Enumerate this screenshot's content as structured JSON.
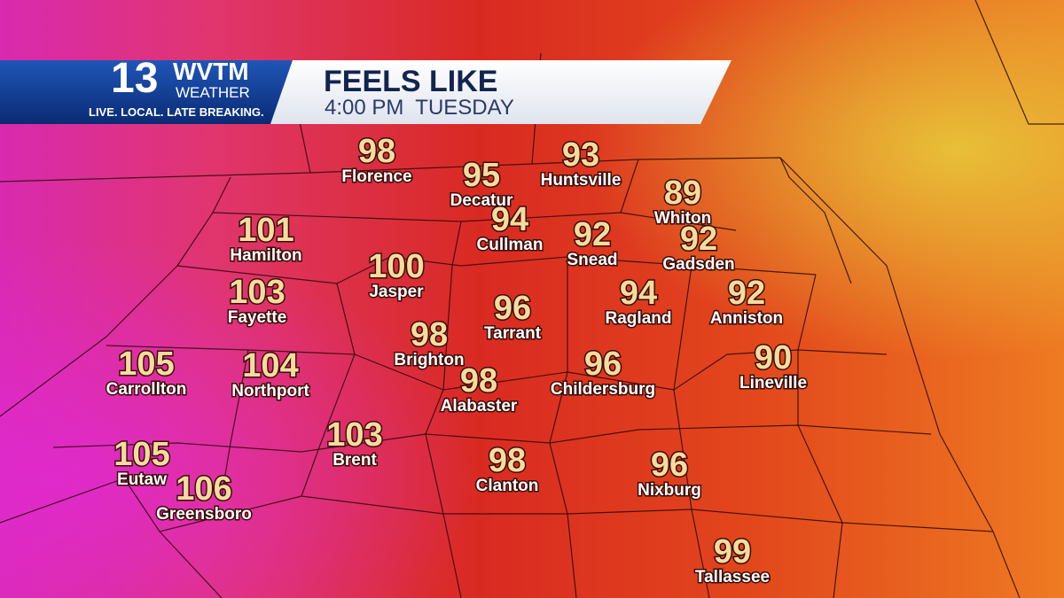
{
  "header": {
    "logo": {
      "number": "13",
      "call_sign": "WVTM",
      "brand": "WEATHER",
      "slogan": "LIVE. LOCAL. LATE BREAKING."
    },
    "title": "FEELS LIKE",
    "subtitle": "4:00 PM  TUESDAY"
  },
  "cities": [
    {
      "name": "Florence",
      "value": 98
    },
    {
      "name": "Decatur",
      "value": 95
    },
    {
      "name": "Huntsville",
      "value": 93
    },
    {
      "name": "Whiton",
      "value": 89
    },
    {
      "name": "Hamilton",
      "value": 101
    },
    {
      "name": "Cullman",
      "value": 94
    },
    {
      "name": "Snead",
      "value": 92
    },
    {
      "name": "Gadsden",
      "value": 92
    },
    {
      "name": "Jasper",
      "value": 100
    },
    {
      "name": "Fayette",
      "value": 103
    },
    {
      "name": "Ragland",
      "value": 94
    },
    {
      "name": "Anniston",
      "value": 92
    },
    {
      "name": "Tarrant",
      "value": 96
    },
    {
      "name": "Brighton",
      "value": 98
    },
    {
      "name": "Carrollton",
      "value": 105
    },
    {
      "name": "Northport",
      "value": 104
    },
    {
      "name": "Lineville",
      "value": 90
    },
    {
      "name": "Childersburg",
      "value": 96
    },
    {
      "name": "Alabaster",
      "value": 98
    },
    {
      "name": "Brent",
      "value": 103
    },
    {
      "name": "Eutaw",
      "value": 105
    },
    {
      "name": "Greensboro",
      "value": 106
    },
    {
      "name": "Clanton",
      "value": 98
    },
    {
      "name": "Nixburg",
      "value": 96
    },
    {
      "name": "Tallassee",
      "value": 99
    }
  ]
}
